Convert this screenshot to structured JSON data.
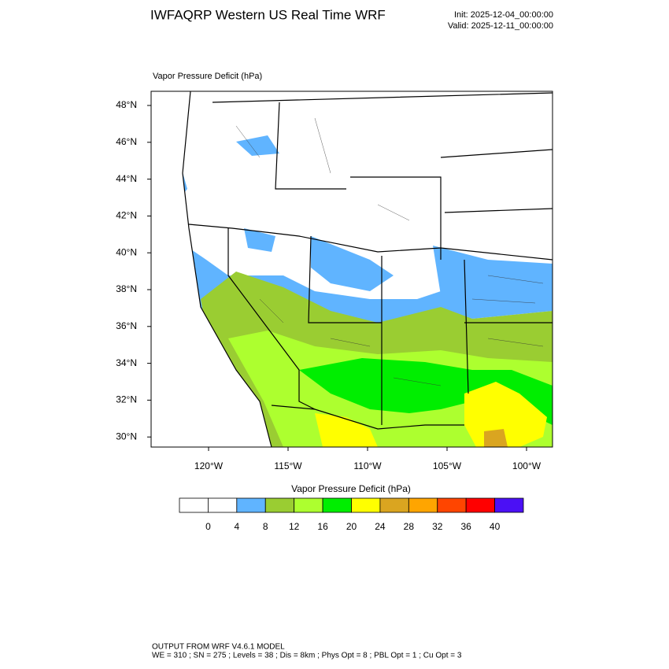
{
  "header": {
    "title": "IWFAQRP Western US Real Time WRF",
    "init": "Init: 2025-12-04_00:00:00",
    "valid": "Valid: 2025-12-11_00:00:00"
  },
  "map": {
    "title": "Vapor Pressure Deficit   (hPa)",
    "lat_labels": [
      "48°N",
      "46°N",
      "44°N",
      "42°N",
      "40°N",
      "38°N",
      "36°N",
      "34°N",
      "32°N",
      "30°N"
    ],
    "lon_labels": [
      "120°W",
      "115°W",
      "110°W",
      "105°W",
      "100°W"
    ]
  },
  "colorbar": {
    "title": "Vapor Pressure Deficit  (hPa)",
    "colors": [
      "#ffffff",
      "#ffffff",
      "#60b4ff",
      "#9acd32",
      "#adff2f",
      "#00ee00",
      "#ffff00",
      "#daa520",
      "#ffa500",
      "#ff4500",
      "#ff0000",
      "#4b10f5"
    ],
    "labels": [
      "0",
      "4",
      "8",
      "12",
      "16",
      "20",
      "24",
      "28",
      "32",
      "36",
      "40"
    ]
  },
  "footer": {
    "line1": "OUTPUT FROM WRF V4.6.1 MODEL",
    "line2": "WE = 310 ; SN = 275 ; Levels = 38 ; Dis = 8km ; Phys Opt = 8 ; PBL Opt = 1 ; Cu Opt = 3"
  }
}
